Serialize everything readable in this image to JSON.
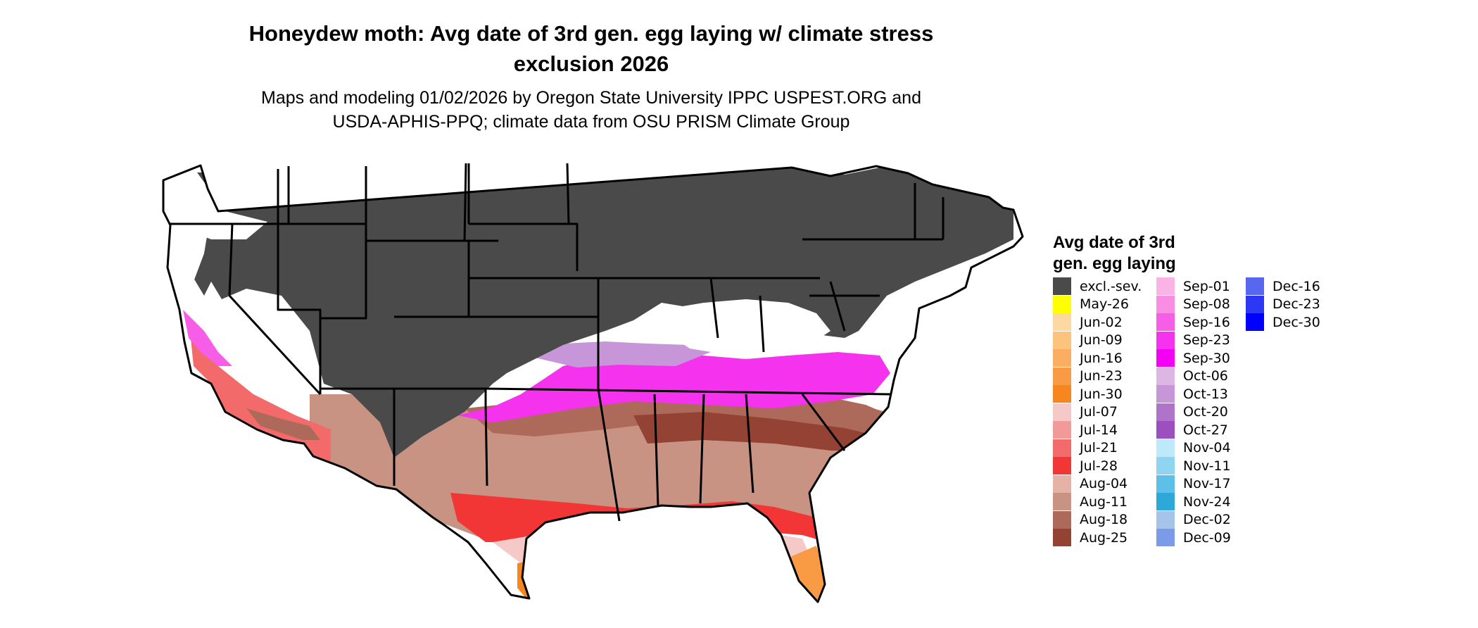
{
  "title": "Honeydew moth: Avg date of 3rd gen. egg laying w/ climate stress exclusion 2026",
  "title_line1": "Honeydew moth: Avg date of 3rd gen. egg laying w/ climate stress",
  "title_line2": "exclusion 2026",
  "subtitle_line1": "Maps and modeling 01/02/2026 by Oregon State University IPPC USPEST.ORG and",
  "subtitle_line2": "USDA-APHIS-PPQ; climate data from OSU PRISM Climate Group",
  "legend": {
    "title_line1": "Avg date of 3rd",
    "title_line2": "gen. egg laying",
    "items": [
      {
        "label": "excl.-sev.",
        "color": "#4a4a4a"
      },
      {
        "label": "May-26",
        "color": "#ffff00"
      },
      {
        "label": "Jun-02",
        "color": "#fdd8a0"
      },
      {
        "label": "Jun-09",
        "color": "#fcc37d"
      },
      {
        "label": "Jun-16",
        "color": "#fbae62"
      },
      {
        "label": "Jun-23",
        "color": "#f99a45"
      },
      {
        "label": "Jun-30",
        "color": "#f7861e"
      },
      {
        "label": "Jul-07",
        "color": "#f6c9c9"
      },
      {
        "label": "Jul-14",
        "color": "#f29a9a"
      },
      {
        "label": "Jul-21",
        "color": "#f36a6a"
      },
      {
        "label": "Jul-28",
        "color": "#f23636"
      },
      {
        "label": "Aug-04",
        "color": "#e5b2a8"
      },
      {
        "label": "Aug-11",
        "color": "#c99383"
      },
      {
        "label": "Aug-18",
        "color": "#ad6a5a"
      },
      {
        "label": "Aug-25",
        "color": "#934234"
      },
      {
        "label": "Sep-01",
        "color": "#fbb2e4"
      },
      {
        "label": "Sep-08",
        "color": "#f98ce3"
      },
      {
        "label": "Sep-16",
        "color": "#f75ee8"
      },
      {
        "label": "Sep-23",
        "color": "#f533ee"
      },
      {
        "label": "Sep-30",
        "color": "#f400f4"
      },
      {
        "label": "Oct-06",
        "color": "#dcb7e4"
      },
      {
        "label": "Oct-13",
        "color": "#c696d8"
      },
      {
        "label": "Oct-20",
        "color": "#b073cb"
      },
      {
        "label": "Oct-27",
        "color": "#9c4fbf"
      },
      {
        "label": "Nov-04",
        "color": "#bde9fb"
      },
      {
        "label": "Nov-11",
        "color": "#8fd5f2"
      },
      {
        "label": "Nov-17",
        "color": "#5cc0e8"
      },
      {
        "label": "Nov-24",
        "color": "#2ea8d9"
      },
      {
        "label": "Dec-02",
        "color": "#a6c3e9"
      },
      {
        "label": "Dec-09",
        "color": "#7b9ae9"
      },
      {
        "label": "Dec-16",
        "color": "#5767f0"
      },
      {
        "label": "Dec-23",
        "color": "#2c38f4"
      },
      {
        "label": "Dec-30",
        "color": "#0000ff"
      }
    ]
  }
}
